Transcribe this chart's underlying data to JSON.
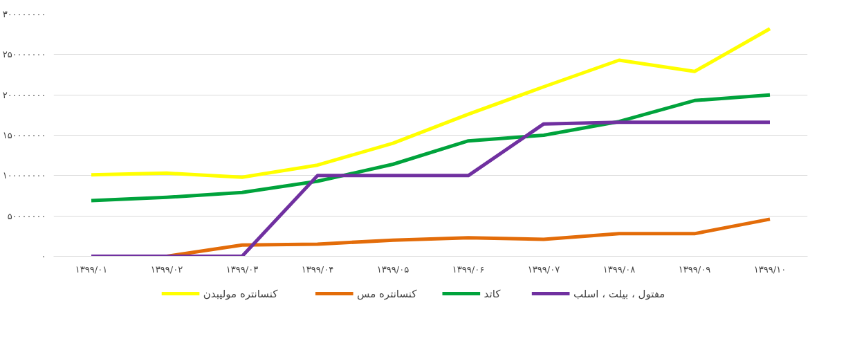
{
  "chart_data": {
    "type": "line",
    "categories": [
      "۱۳۹۹/۰۱",
      "۱۳۹۹/۰۲",
      "۱۳۹۹/۰۳",
      "۱۳۹۹/۰۴",
      "۱۳۹۹/۰۵",
      "۱۳۹۹/۰۶",
      "۱۳۹۹/۰۷",
      "۱۳۹۹/۰۸",
      "۱۳۹۹/۰۹",
      "۱۳۹۹/۱۰"
    ],
    "series": [
      {
        "name": "کنسانتره مولیبدن",
        "color": "#ffff00",
        "values": [
          101000000,
          103000000,
          98000000,
          113000000,
          140000000,
          176000000,
          210000000,
          243000000,
          229000000,
          282000000
        ]
      },
      {
        "name": "کنسانتره مس",
        "color": "#e36c09",
        "values": [
          0,
          0,
          14000000,
          15000000,
          20000000,
          23000000,
          21000000,
          28000000,
          28000000,
          46000000
        ]
      },
      {
        "name": "کاتد",
        "color": "#00a33c",
        "values": [
          69000000,
          73000000,
          79000000,
          93000000,
          114000000,
          143000000,
          150000000,
          167000000,
          193000000,
          200000000
        ]
      },
      {
        "name": "مفتول ، بیلت ، اسلب",
        "color": "#7030a0",
        "values": [
          0,
          0,
          0,
          100000000,
          100000000,
          100000000,
          164000000,
          166000000,
          166000000,
          166000000
        ]
      }
    ],
    "ylim": [
      0,
      300000000
    ],
    "yticks": [
      {
        "value": 0,
        "label": "۰"
      },
      {
        "value": 50000000,
        "label": "۵۰۰۰۰۰۰۰"
      },
      {
        "value": 100000000,
        "label": "۱۰۰۰۰۰۰۰۰"
      },
      {
        "value": 150000000,
        "label": "۱۵۰۰۰۰۰۰۰"
      },
      {
        "value": 200000000,
        "label": "۲۰۰۰۰۰۰۰۰"
      },
      {
        "value": 250000000,
        "label": "۲۵۰۰۰۰۰۰۰"
      },
      {
        "value": 300000000,
        "label": "۳۰۰۰۰۰۰۰۰"
      }
    ],
    "grid": "y",
    "legend": "bottom",
    "marker": "none",
    "line_style": "solid"
  }
}
